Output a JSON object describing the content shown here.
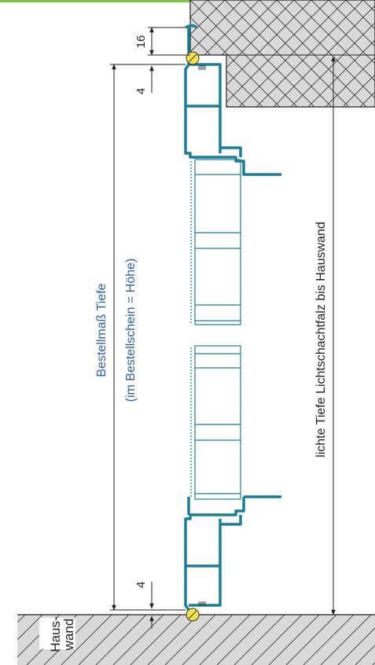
{
  "colors": {
    "accent_bar": "#7dc242",
    "profile": "#1b7e95",
    "dimension_blue": "#2c5fa8",
    "hatch_fill": "#d9d9d9",
    "line": "#222222",
    "screw": "#f2e14a"
  },
  "labels": {
    "dim_16": "16",
    "dim_4_top": "4",
    "dim_4_bottom": "4",
    "order_size_line1": "Bestellmaß Tiefe",
    "order_size_line2": "(im Bestellschein = Höhe)",
    "clear_depth": "lichte Tiefe Lichtschachtfalz bis Hauswand",
    "house_wall_line1": "Haus-",
    "house_wall_line2": "wand"
  }
}
